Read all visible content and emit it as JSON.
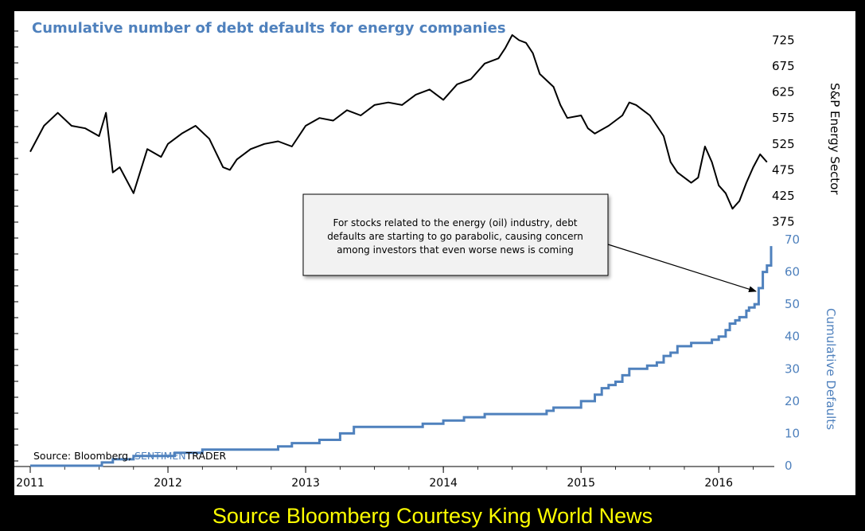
{
  "chart_data": {
    "type": "line",
    "title": "Cumulative number of debt defaults for energy companies",
    "x_tick_labels": [
      "2011",
      "2012",
      "2013",
      "2014",
      "2015",
      "2016"
    ],
    "xlim": [
      2011.0,
      2016.38
    ],
    "y_right_top": {
      "label": "S&P Energy Sector",
      "ticks": [
        375,
        425,
        475,
        525,
        575,
        625,
        675,
        725
      ],
      "ylim": [
        365,
        735
      ],
      "color": "#000000"
    },
    "y_right_bottom": {
      "label": "Cumulative Defaults",
      "ticks": [
        0,
        10,
        20,
        30,
        40,
        50,
        60,
        70
      ],
      "ylim": [
        0,
        70
      ],
      "color": "#4f81bd"
    },
    "series": [
      {
        "name": "S&P Energy Sector",
        "axis": "top",
        "color": "#000000",
        "x": [
          2011.0,
          2011.1,
          2011.2,
          2011.3,
          2011.4,
          2011.5,
          2011.55,
          2011.6,
          2011.65,
          2011.75,
          2011.85,
          2011.95,
          2012.0,
          2012.1,
          2012.2,
          2012.3,
          2012.4,
          2012.45,
          2012.5,
          2012.6,
          2012.7,
          2012.8,
          2012.9,
          2013.0,
          2013.1,
          2013.2,
          2013.3,
          2013.4,
          2013.5,
          2013.6,
          2013.7,
          2013.8,
          2013.9,
          2014.0,
          2014.1,
          2014.2,
          2014.3,
          2014.4,
          2014.45,
          2014.5,
          2014.55,
          2014.6,
          2014.65,
          2014.7,
          2014.8,
          2014.85,
          2014.9,
          2015.0,
          2015.05,
          2015.1,
          2015.2,
          2015.3,
          2015.35,
          2015.4,
          2015.5,
          2015.55,
          2015.6,
          2015.65,
          2015.7,
          2015.8,
          2015.85,
          2015.9,
          2015.95,
          2016.0,
          2016.05,
          2016.1,
          2016.15,
          2016.2,
          2016.25,
          2016.3,
          2016.35
        ],
        "y": [
          510,
          560,
          585,
          560,
          555,
          540,
          585,
          470,
          480,
          430,
          515,
          500,
          525,
          545,
          560,
          535,
          480,
          475,
          495,
          515,
          525,
          530,
          520,
          560,
          575,
          570,
          590,
          580,
          600,
          605,
          600,
          620,
          630,
          610,
          640,
          650,
          680,
          690,
          710,
          735,
          725,
          720,
          700,
          660,
          635,
          600,
          575,
          580,
          555,
          545,
          560,
          580,
          605,
          600,
          580,
          560,
          540,
          490,
          470,
          450,
          460,
          520,
          490,
          445,
          430,
          400,
          415,
          450,
          480,
          505,
          490
        ]
      },
      {
        "name": "Cumulative Defaults",
        "axis": "bottom",
        "color": "#4f81bd",
        "x": [
          2011.0,
          2011.52,
          2011.6,
          2011.65,
          2011.75,
          2011.88,
          2012.05,
          2012.15,
          2012.25,
          2012.8,
          2012.9,
          2013.0,
          2013.1,
          2013.25,
          2013.35,
          2013.6,
          2013.85,
          2014.0,
          2014.15,
          2014.3,
          2014.75,
          2014.8,
          2014.95,
          2015.0,
          2015.08,
          2015.1,
          2015.15,
          2015.2,
          2015.25,
          2015.3,
          2015.35,
          2015.48,
          2015.55,
          2015.6,
          2015.65,
          2015.7,
          2015.8,
          2015.9,
          2015.95,
          2016.0,
          2016.05,
          2016.08,
          2016.12,
          2016.15,
          2016.2,
          2016.22,
          2016.26,
          2016.29,
          2016.32,
          2016.35,
          2016.38
        ],
        "y": [
          0,
          1,
          2,
          2,
          3,
          3,
          4,
          4,
          5,
          6,
          7,
          7,
          8,
          10,
          12,
          12,
          13,
          14,
          15,
          16,
          17,
          18,
          18,
          20,
          20,
          22,
          24,
          25,
          26,
          28,
          30,
          31,
          32,
          34,
          35,
          37,
          38,
          38,
          39,
          40,
          42,
          44,
          45,
          46,
          48,
          49,
          50,
          55,
          60,
          62,
          68
        ]
      }
    ],
    "annotation": {
      "lines": [
        "For stocks related to the energy (oil) industry, debt",
        "defaults are starting to go parabolic, causing concern",
        "among investors that even worse news is coming"
      ],
      "points_to": {
        "x": 2016.27,
        "y": 54
      }
    },
    "grid": false,
    "source": {
      "prefix": "Source: Bloomberg, ",
      "brand_part1": "SENTIMEN",
      "brand_part2": "TRADER"
    }
  },
  "footer": {
    "caption": "Source Bloomberg  Courtesy King World News",
    "color": "#ffff00"
  }
}
